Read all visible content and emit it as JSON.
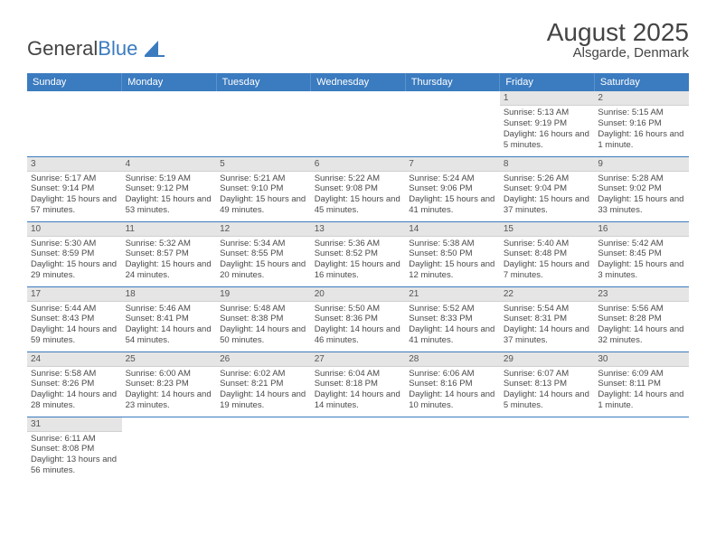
{
  "logo": {
    "part1": "General",
    "part2": "Blue"
  },
  "title": {
    "month": "August 2025",
    "location": "Alsgarde, Denmark"
  },
  "colors": {
    "header_bg": "#3b7bbf",
    "daynum_bg": "#e5e5e5",
    "text": "#4a4a4a",
    "rule": "#3b7bbf"
  },
  "weekdays": [
    "Sunday",
    "Monday",
    "Tuesday",
    "Wednesday",
    "Thursday",
    "Friday",
    "Saturday"
  ],
  "cells": [
    [
      null,
      null,
      null,
      null,
      null,
      {
        "n": "1",
        "sr": "5:13 AM",
        "ss": "9:19 PM",
        "dl": "16 hours and 5 minutes."
      },
      {
        "n": "2",
        "sr": "5:15 AM",
        "ss": "9:16 PM",
        "dl": "16 hours and 1 minute."
      }
    ],
    [
      {
        "n": "3",
        "sr": "5:17 AM",
        "ss": "9:14 PM",
        "dl": "15 hours and 57 minutes."
      },
      {
        "n": "4",
        "sr": "5:19 AM",
        "ss": "9:12 PM",
        "dl": "15 hours and 53 minutes."
      },
      {
        "n": "5",
        "sr": "5:21 AM",
        "ss": "9:10 PM",
        "dl": "15 hours and 49 minutes."
      },
      {
        "n": "6",
        "sr": "5:22 AM",
        "ss": "9:08 PM",
        "dl": "15 hours and 45 minutes."
      },
      {
        "n": "7",
        "sr": "5:24 AM",
        "ss": "9:06 PM",
        "dl": "15 hours and 41 minutes."
      },
      {
        "n": "8",
        "sr": "5:26 AM",
        "ss": "9:04 PM",
        "dl": "15 hours and 37 minutes."
      },
      {
        "n": "9",
        "sr": "5:28 AM",
        "ss": "9:02 PM",
        "dl": "15 hours and 33 minutes."
      }
    ],
    [
      {
        "n": "10",
        "sr": "5:30 AM",
        "ss": "8:59 PM",
        "dl": "15 hours and 29 minutes."
      },
      {
        "n": "11",
        "sr": "5:32 AM",
        "ss": "8:57 PM",
        "dl": "15 hours and 24 minutes."
      },
      {
        "n": "12",
        "sr": "5:34 AM",
        "ss": "8:55 PM",
        "dl": "15 hours and 20 minutes."
      },
      {
        "n": "13",
        "sr": "5:36 AM",
        "ss": "8:52 PM",
        "dl": "15 hours and 16 minutes."
      },
      {
        "n": "14",
        "sr": "5:38 AM",
        "ss": "8:50 PM",
        "dl": "15 hours and 12 minutes."
      },
      {
        "n": "15",
        "sr": "5:40 AM",
        "ss": "8:48 PM",
        "dl": "15 hours and 7 minutes."
      },
      {
        "n": "16",
        "sr": "5:42 AM",
        "ss": "8:45 PM",
        "dl": "15 hours and 3 minutes."
      }
    ],
    [
      {
        "n": "17",
        "sr": "5:44 AM",
        "ss": "8:43 PM",
        "dl": "14 hours and 59 minutes."
      },
      {
        "n": "18",
        "sr": "5:46 AM",
        "ss": "8:41 PM",
        "dl": "14 hours and 54 minutes."
      },
      {
        "n": "19",
        "sr": "5:48 AM",
        "ss": "8:38 PM",
        "dl": "14 hours and 50 minutes."
      },
      {
        "n": "20",
        "sr": "5:50 AM",
        "ss": "8:36 PM",
        "dl": "14 hours and 46 minutes."
      },
      {
        "n": "21",
        "sr": "5:52 AM",
        "ss": "8:33 PM",
        "dl": "14 hours and 41 minutes."
      },
      {
        "n": "22",
        "sr": "5:54 AM",
        "ss": "8:31 PM",
        "dl": "14 hours and 37 minutes."
      },
      {
        "n": "23",
        "sr": "5:56 AM",
        "ss": "8:28 PM",
        "dl": "14 hours and 32 minutes."
      }
    ],
    [
      {
        "n": "24",
        "sr": "5:58 AM",
        "ss": "8:26 PM",
        "dl": "14 hours and 28 minutes."
      },
      {
        "n": "25",
        "sr": "6:00 AM",
        "ss": "8:23 PM",
        "dl": "14 hours and 23 minutes."
      },
      {
        "n": "26",
        "sr": "6:02 AM",
        "ss": "8:21 PM",
        "dl": "14 hours and 19 minutes."
      },
      {
        "n": "27",
        "sr": "6:04 AM",
        "ss": "8:18 PM",
        "dl": "14 hours and 14 minutes."
      },
      {
        "n": "28",
        "sr": "6:06 AM",
        "ss": "8:16 PM",
        "dl": "14 hours and 10 minutes."
      },
      {
        "n": "29",
        "sr": "6:07 AM",
        "ss": "8:13 PM",
        "dl": "14 hours and 5 minutes."
      },
      {
        "n": "30",
        "sr": "6:09 AM",
        "ss": "8:11 PM",
        "dl": "14 hours and 1 minute."
      }
    ],
    [
      {
        "n": "31",
        "sr": "6:11 AM",
        "ss": "8:08 PM",
        "dl": "13 hours and 56 minutes."
      },
      null,
      null,
      null,
      null,
      null,
      null
    ]
  ],
  "labels": {
    "sunrise": "Sunrise: ",
    "sunset": "Sunset: ",
    "daylight": "Daylight: "
  }
}
